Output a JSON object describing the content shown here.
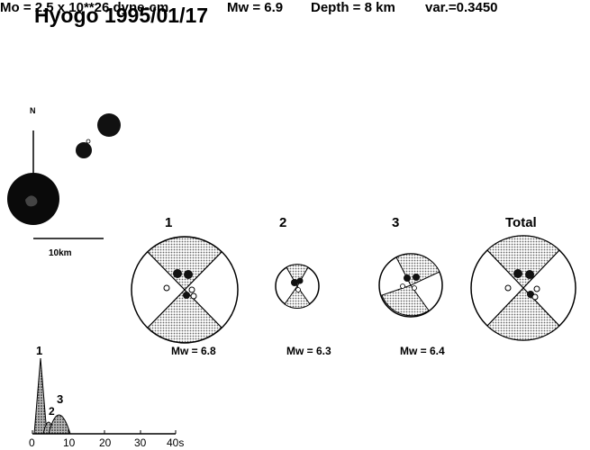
{
  "title": "Hyogo 1995/01/17",
  "params": {
    "mo": "Mo = 2.5 x 10**26 dyne-cm",
    "mw": "Mw = 6.9",
    "depth": "Depth = 8 km",
    "variance": "var.=0.3450"
  },
  "map": {
    "north_label": "N",
    "scale_label": "10km"
  },
  "subevents": [
    {
      "label": "1",
      "mw": "Mw = 6.8"
    },
    {
      "label": "2",
      "mw": "Mw = 6.3"
    },
    {
      "label": "3",
      "mw": "Mw = 6.4"
    },
    {
      "label": "Total",
      "mw": ""
    }
  ],
  "stf": {
    "x_ticks": [
      "0",
      "10",
      "20",
      "30",
      "40s"
    ],
    "peak_labels": [
      "1",
      "2",
      "3"
    ]
  },
  "colors": {
    "ink": "#000000",
    "shade": "#999999"
  }
}
